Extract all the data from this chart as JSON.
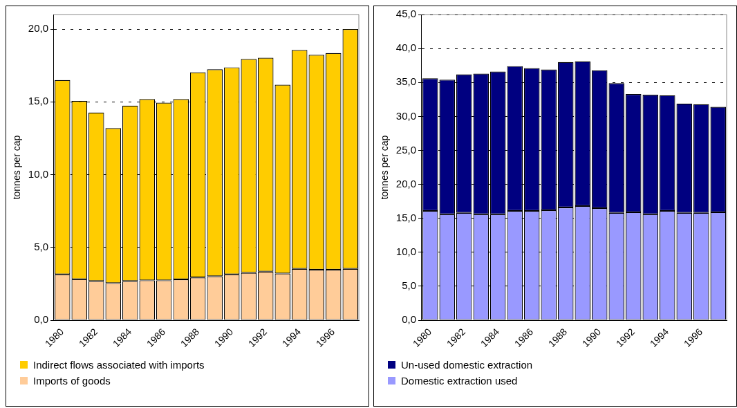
{
  "chart_data": [
    {
      "type": "bar",
      "stacked": true,
      "ylabel": "tonnes per cap",
      "categories": [
        "1980",
        null,
        "1982",
        null,
        "1984",
        null,
        "1986",
        null,
        "1988",
        null,
        "1990",
        null,
        "1992",
        null,
        "1994",
        null,
        "1996",
        null
      ],
      "ylim": [
        0,
        21
      ],
      "yticks": [
        {
          "value": 0,
          "label": "0,0"
        },
        {
          "value": 5,
          "label": "5,0"
        },
        {
          "value": 10,
          "label": "10,0"
        },
        {
          "value": 15,
          "label": "15,0"
        },
        {
          "value": 20,
          "label": "20,0"
        }
      ],
      "grid": "y",
      "legend": "bottom",
      "series": [
        {
          "name": "Imports of goods",
          "color": "#ffcc99",
          "values": [
            3.15,
            2.82,
            2.69,
            2.55,
            2.69,
            2.74,
            2.74,
            2.81,
            2.94,
            3.02,
            3.15,
            3.26,
            3.34,
            3.21,
            3.53,
            3.47,
            3.47,
            3.53
          ]
        },
        {
          "name": "Indirect flows associated with imports",
          "color": "#ffcc00",
          "values": [
            13.35,
            12.24,
            11.58,
            10.65,
            12.05,
            12.45,
            12.2,
            12.38,
            14.09,
            14.21,
            14.22,
            14.69,
            14.69,
            12.97,
            15.03,
            14.76,
            14.88,
            16.47
          ]
        }
      ]
    },
    {
      "type": "bar",
      "stacked": true,
      "ylabel": "tonnes per cap",
      "categories": [
        "1980",
        null,
        "1982",
        null,
        "1984",
        null,
        "1986",
        null,
        "1988",
        null,
        "1990",
        null,
        "1992",
        null,
        "1994",
        null,
        "1996",
        null
      ],
      "ylim": [
        0,
        45
      ],
      "yticks": [
        {
          "value": 0,
          "label": "0,0"
        },
        {
          "value": 5,
          "label": "5,0"
        },
        {
          "value": 10,
          "label": "10,0"
        },
        {
          "value": 15,
          "label": "15,0"
        },
        {
          "value": 20,
          "label": "20,0"
        },
        {
          "value": 25,
          "label": "25,0"
        },
        {
          "value": 30,
          "label": "30,0"
        },
        {
          "value": 35,
          "label": "35,0"
        },
        {
          "value": 40,
          "label": "40,0"
        },
        {
          "value": 45,
          "label": "45,0"
        }
      ],
      "grid": "y",
      "legend": "bottom",
      "series": [
        {
          "name": "Domestic extraction used",
          "color": "#9999ff",
          "values": [
            16.1,
            15.6,
            15.8,
            15.6,
            15.6,
            16.1,
            16.1,
            16.2,
            16.6,
            16.8,
            16.5,
            15.8,
            15.9,
            15.6,
            16.1,
            15.8,
            15.8,
            15.9
          ]
        },
        {
          "name": "Un-used domestic extraction",
          "color": "#000080",
          "values": [
            19.5,
            19.8,
            20.4,
            20.7,
            21.0,
            21.3,
            21.0,
            20.7,
            21.4,
            21.3,
            20.3,
            19.1,
            17.4,
            17.6,
            17.0,
            16.1,
            16.0,
            15.5
          ]
        }
      ]
    }
  ]
}
